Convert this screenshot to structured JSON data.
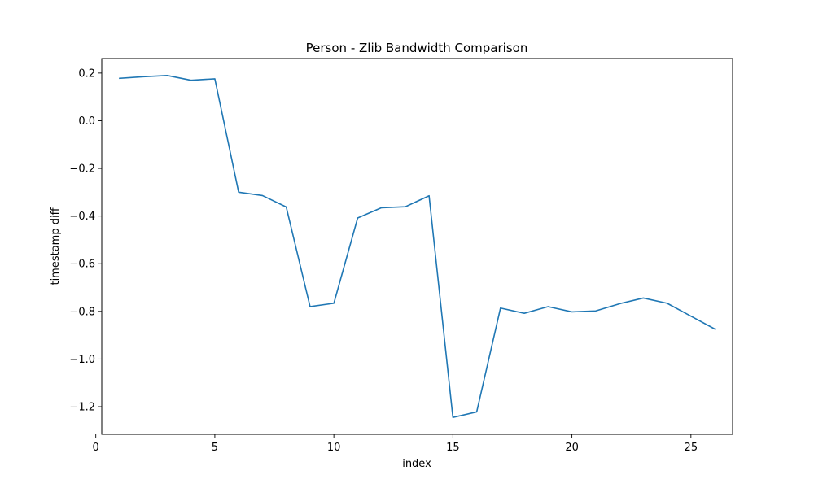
{
  "chart_data": {
    "type": "line",
    "title": "Person - Zlib Bandwidth Comparison",
    "xlabel": "index",
    "ylabel": "timestamp diff",
    "xlim": [
      0.25,
      26.75
    ],
    "ylim": [
      -1.316,
      0.261
    ],
    "x_ticks": [
      0,
      5,
      10,
      15,
      20,
      25
    ],
    "y_ticks": [
      0.2,
      0.0,
      -0.2,
      -0.4,
      -0.6,
      -0.8,
      -1.0,
      -1.2
    ],
    "x_tick_labels": [
      "0",
      "5",
      "10",
      "15",
      "20",
      "25"
    ],
    "y_tick_labels": [
      "0.2",
      "0.0",
      "−0.2",
      "−0.4",
      "−0.6",
      "−0.8",
      "−1.0",
      "−1.2"
    ],
    "grid": false,
    "legend": "none",
    "series": [
      {
        "color": "#1f77b4",
        "x": [
          1,
          2,
          3,
          4,
          5,
          6,
          7,
          8,
          9,
          10,
          11,
          12,
          13,
          14,
          15,
          16,
          17,
          18,
          19,
          20,
          21,
          22,
          23,
          24,
          25,
          26
        ],
        "y": [
          0.178,
          0.185,
          0.19,
          0.17,
          0.176,
          -0.3,
          -0.314,
          -0.362,
          -0.78,
          -0.766,
          -0.408,
          -0.365,
          -0.361,
          -0.315,
          -1.245,
          -1.222,
          -0.786,
          -0.808,
          -0.78,
          -0.802,
          -0.798,
          -0.768,
          -0.744,
          -0.766,
          -0.82,
          -0.874
        ]
      }
    ]
  }
}
